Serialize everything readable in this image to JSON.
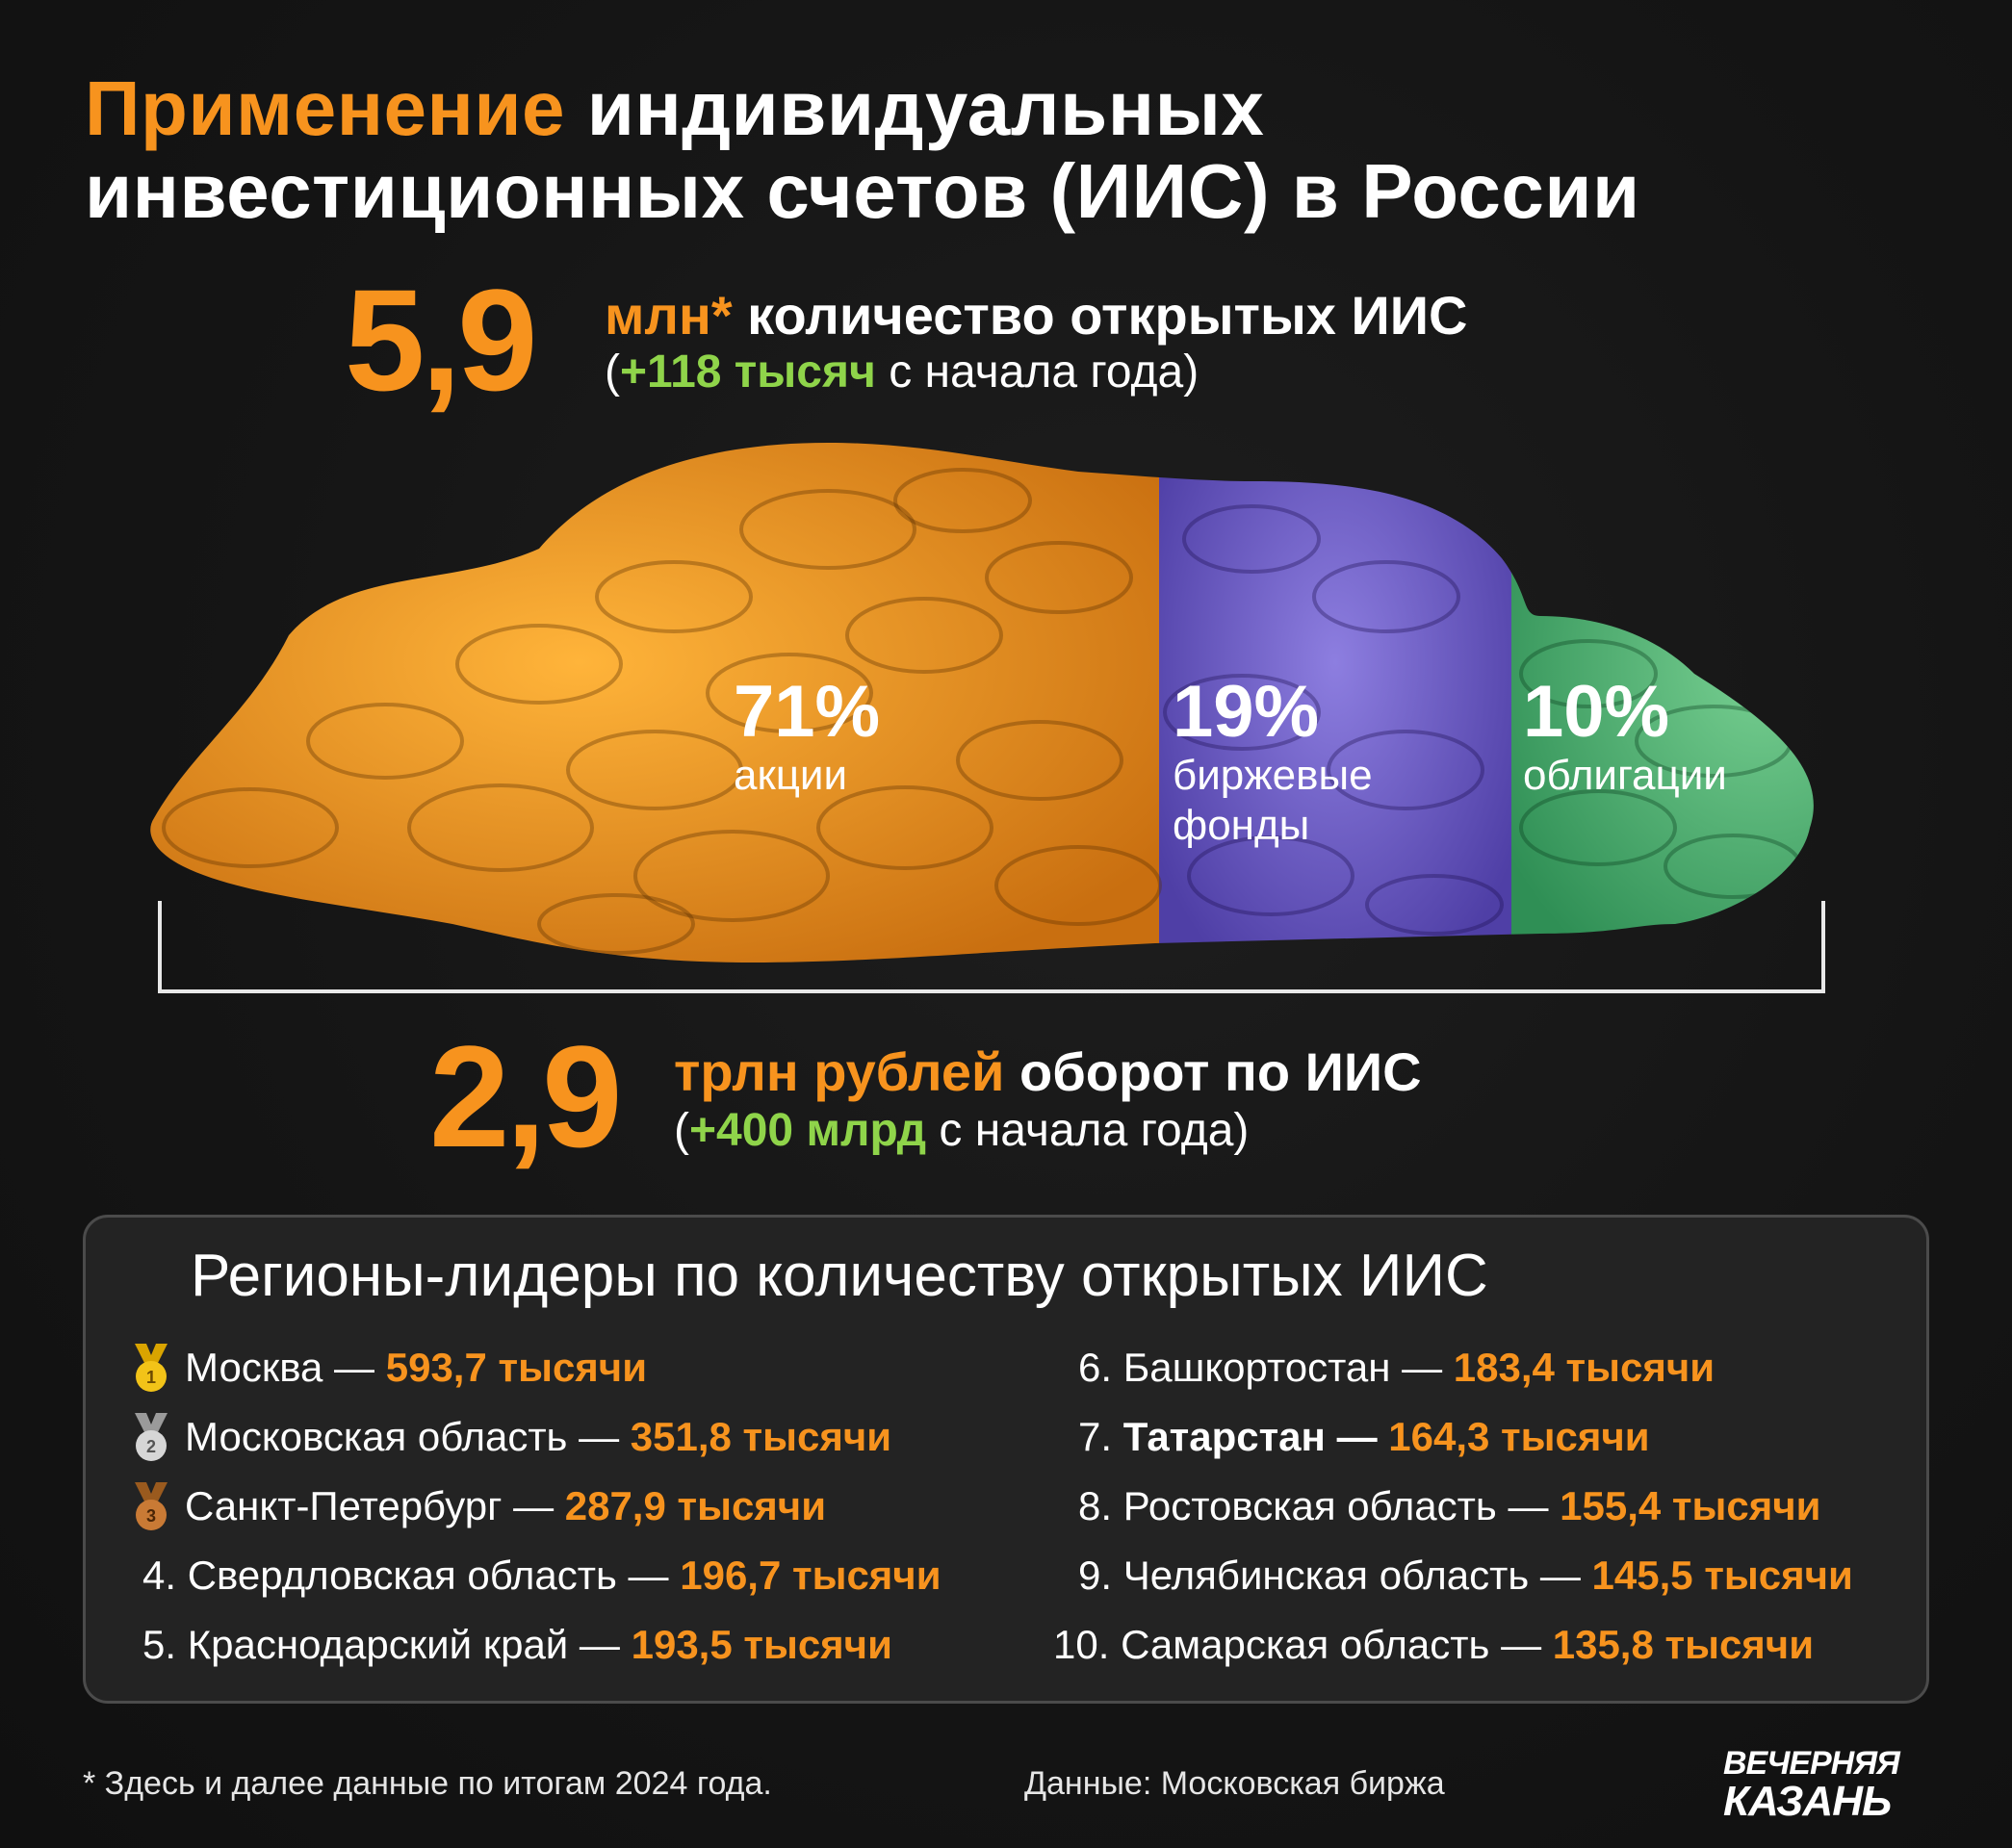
{
  "title": {
    "accent": "Применение",
    "line1_rest": " индивидуальных",
    "line2": "инвестиционных счетов (ИИС) в России"
  },
  "accounts": {
    "value": "5,9",
    "unit": "млн*",
    "label": " количество открытых ИИС",
    "sub_open": "(",
    "growth": "+118 тысяч",
    "sub_rest": " с начала года)"
  },
  "turnover": {
    "value": "2,9",
    "unit": "трлн рублей",
    "label": " оборот по ИИС",
    "sub_open": "(",
    "growth": "+400 млрд",
    "sub_rest": " с начала года)"
  },
  "structure": {
    "segments": [
      {
        "percent": "71%",
        "label": "акции",
        "share": 71,
        "color": "#f7931e"
      },
      {
        "percent": "19%",
        "label_line1": "биржевые",
        "label_line2": "фонды",
        "share": 19,
        "color": "#6c5bc4"
      },
      {
        "percent": "10%",
        "label": "облигации",
        "share": 10,
        "color": "#4caa6b"
      }
    ]
  },
  "regions": {
    "title": "Регионы-лидеры по количеству открытых ИИС",
    "left": [
      {
        "rank": "1",
        "name": "Москва — ",
        "value": "593,7 тысячи"
      },
      {
        "rank": "2",
        "name": "Московская область — ",
        "value": "351,8 тысячи"
      },
      {
        "rank": "3",
        "name": "Санкт-Петербург — ",
        "value": "287,9 тысячи"
      },
      {
        "rank": "4.",
        "name": "Свердловская область — ",
        "value": "196,7 тысячи"
      },
      {
        "rank": "5.",
        "name": "Краснодарский край — ",
        "value": "193,5 тысячи"
      }
    ],
    "right": [
      {
        "rank": "6.",
        "name": "Башкортостан — ",
        "value": "183,4 тысячи"
      },
      {
        "rank": "7.",
        "name": "Татарстан — ",
        "value": "164,3 тысячи"
      },
      {
        "rank": "8.",
        "name": "Ростовская область — ",
        "value": "155,4 тысячи"
      },
      {
        "rank": "9.",
        "name": "Челябинская область — ",
        "value": "145,5 тысячи"
      },
      {
        "rank": "10.",
        "name": "Самарская область — ",
        "value": "135,8 тысячи"
      }
    ]
  },
  "footnote": "* Здесь и далее данные по итогам 2024 года.",
  "source": "Данные: Московская биржа",
  "logo": {
    "line1": "ВЕЧЕРНЯЯ",
    "line2": "КАЗАНЬ"
  },
  "colors": {
    "accent": "#f7931e",
    "growth": "#8fd44a",
    "background": "#141414"
  }
}
